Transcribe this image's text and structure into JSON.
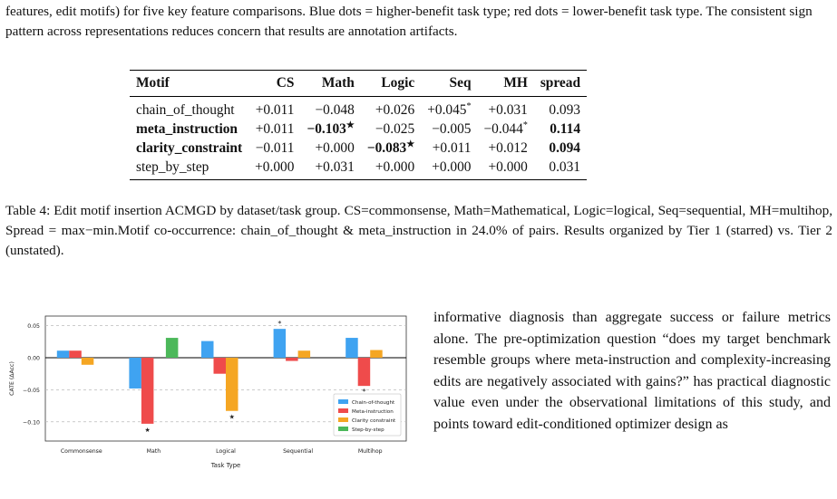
{
  "intro_text": "features, edit motifs) for five key feature comparisons. Blue dots = higher-benefit task type; red dots = lower-benefit task type. The consistent sign pattern across representations reduces concern that results are annotation artifacts.",
  "table": {
    "headers": [
      "Motif",
      "CS",
      "Math",
      "Logic",
      "Seq",
      "MH",
      "spread"
    ],
    "rows": [
      {
        "cells": [
          "chain_of_thought",
          "+0.011",
          "−0.048",
          "+0.026",
          "+0.045",
          "+0.031",
          "0.093"
        ],
        "marks": [
          "",
          "",
          "",
          "",
          "*",
          "",
          ""
        ],
        "bold": [
          false,
          false,
          false,
          false,
          false,
          false,
          false
        ]
      },
      {
        "cells": [
          "meta_instruction",
          "+0.011",
          "−0.103",
          "−0.025",
          "−0.005",
          "−0.044",
          "0.114"
        ],
        "marks": [
          "",
          "",
          "★",
          "",
          "",
          "*",
          ""
        ],
        "bold": [
          true,
          false,
          true,
          false,
          false,
          false,
          true
        ]
      },
      {
        "cells": [
          "clarity_constraint",
          "−0.011",
          "+0.000",
          "−0.083",
          "+0.011",
          "+0.012",
          "0.094"
        ],
        "marks": [
          "",
          "",
          "",
          "★",
          "",
          "",
          ""
        ],
        "bold": [
          true,
          false,
          false,
          true,
          false,
          false,
          true
        ]
      },
      {
        "cells": [
          "step_by_step",
          "+0.000",
          "+0.031",
          "+0.000",
          "+0.000",
          "+0.000",
          "0.031"
        ],
        "marks": [
          "",
          "",
          "",
          "",
          "",
          "",
          ""
        ],
        "bold": [
          false,
          false,
          false,
          false,
          false,
          false,
          false
        ]
      }
    ]
  },
  "caption_text": "Table 4: Edit motif insertion ACMGD by dataset/task group. CS=commonsense, Math=Mathematical, Logic=logical, Seq=sequential, MH=multihop, Spread = max−min.Motif co-occurrence: chain_of_thought & meta_instruction in 24.0% of pairs. Results organized by Tier 1 (starred) vs. Tier 2 (unstated).",
  "body_text": "informative diagnosis than aggregate success or failure metrics alone. The pre-optimization question “does my target benchmark resemble groups where meta-instruction and complexity-increasing edits are negatively associated with gains?” has practical diagnostic value even under the observational limitations of this study, and points toward edit-conditioned optimizer design as",
  "chart_data": {
    "type": "bar",
    "categories": [
      "Commonsense",
      "Math",
      "Logical",
      "Sequential",
      "Multihop"
    ],
    "series": [
      {
        "name": "Chain-of-thought",
        "color": "#3fa3f1",
        "values": [
          0.011,
          -0.048,
          0.026,
          0.045,
          0.031
        ]
      },
      {
        "name": "Meta-instruction",
        "color": "#ef4b4b",
        "values": [
          0.011,
          -0.103,
          -0.025,
          -0.005,
          -0.044
        ]
      },
      {
        "name": "Clarity constraint",
        "color": "#f5a623",
        "values": [
          -0.011,
          0.0,
          -0.083,
          0.011,
          0.012
        ]
      },
      {
        "name": "Step-by-step",
        "color": "#4cb85a",
        "values": [
          0.0,
          0.031,
          0.0,
          0.0,
          0.0
        ]
      }
    ],
    "ylabel": "CATE (ΔAcc)",
    "xlabel": "Task Type",
    "yticks": [
      "0.05",
      "0.00",
      "−0.05",
      "−0.10"
    ],
    "ytick_values": [
      0.05,
      0.0,
      -0.05,
      -0.1
    ],
    "ylim": [
      -0.13,
      0.065
    ],
    "stars": [
      {
        "category": "Math",
        "series": "Meta-instruction",
        "symbol": "★"
      },
      {
        "category": "Logical",
        "series": "Clarity constraint",
        "symbol": "★"
      },
      {
        "category": "Sequential",
        "series": "Chain-of-thought",
        "symbol": "*"
      },
      {
        "category": "Multihop",
        "series": "Meta-instruction",
        "symbol": "*"
      }
    ],
    "legend_position": "bottom-right",
    "grid": "y-dashed"
  }
}
